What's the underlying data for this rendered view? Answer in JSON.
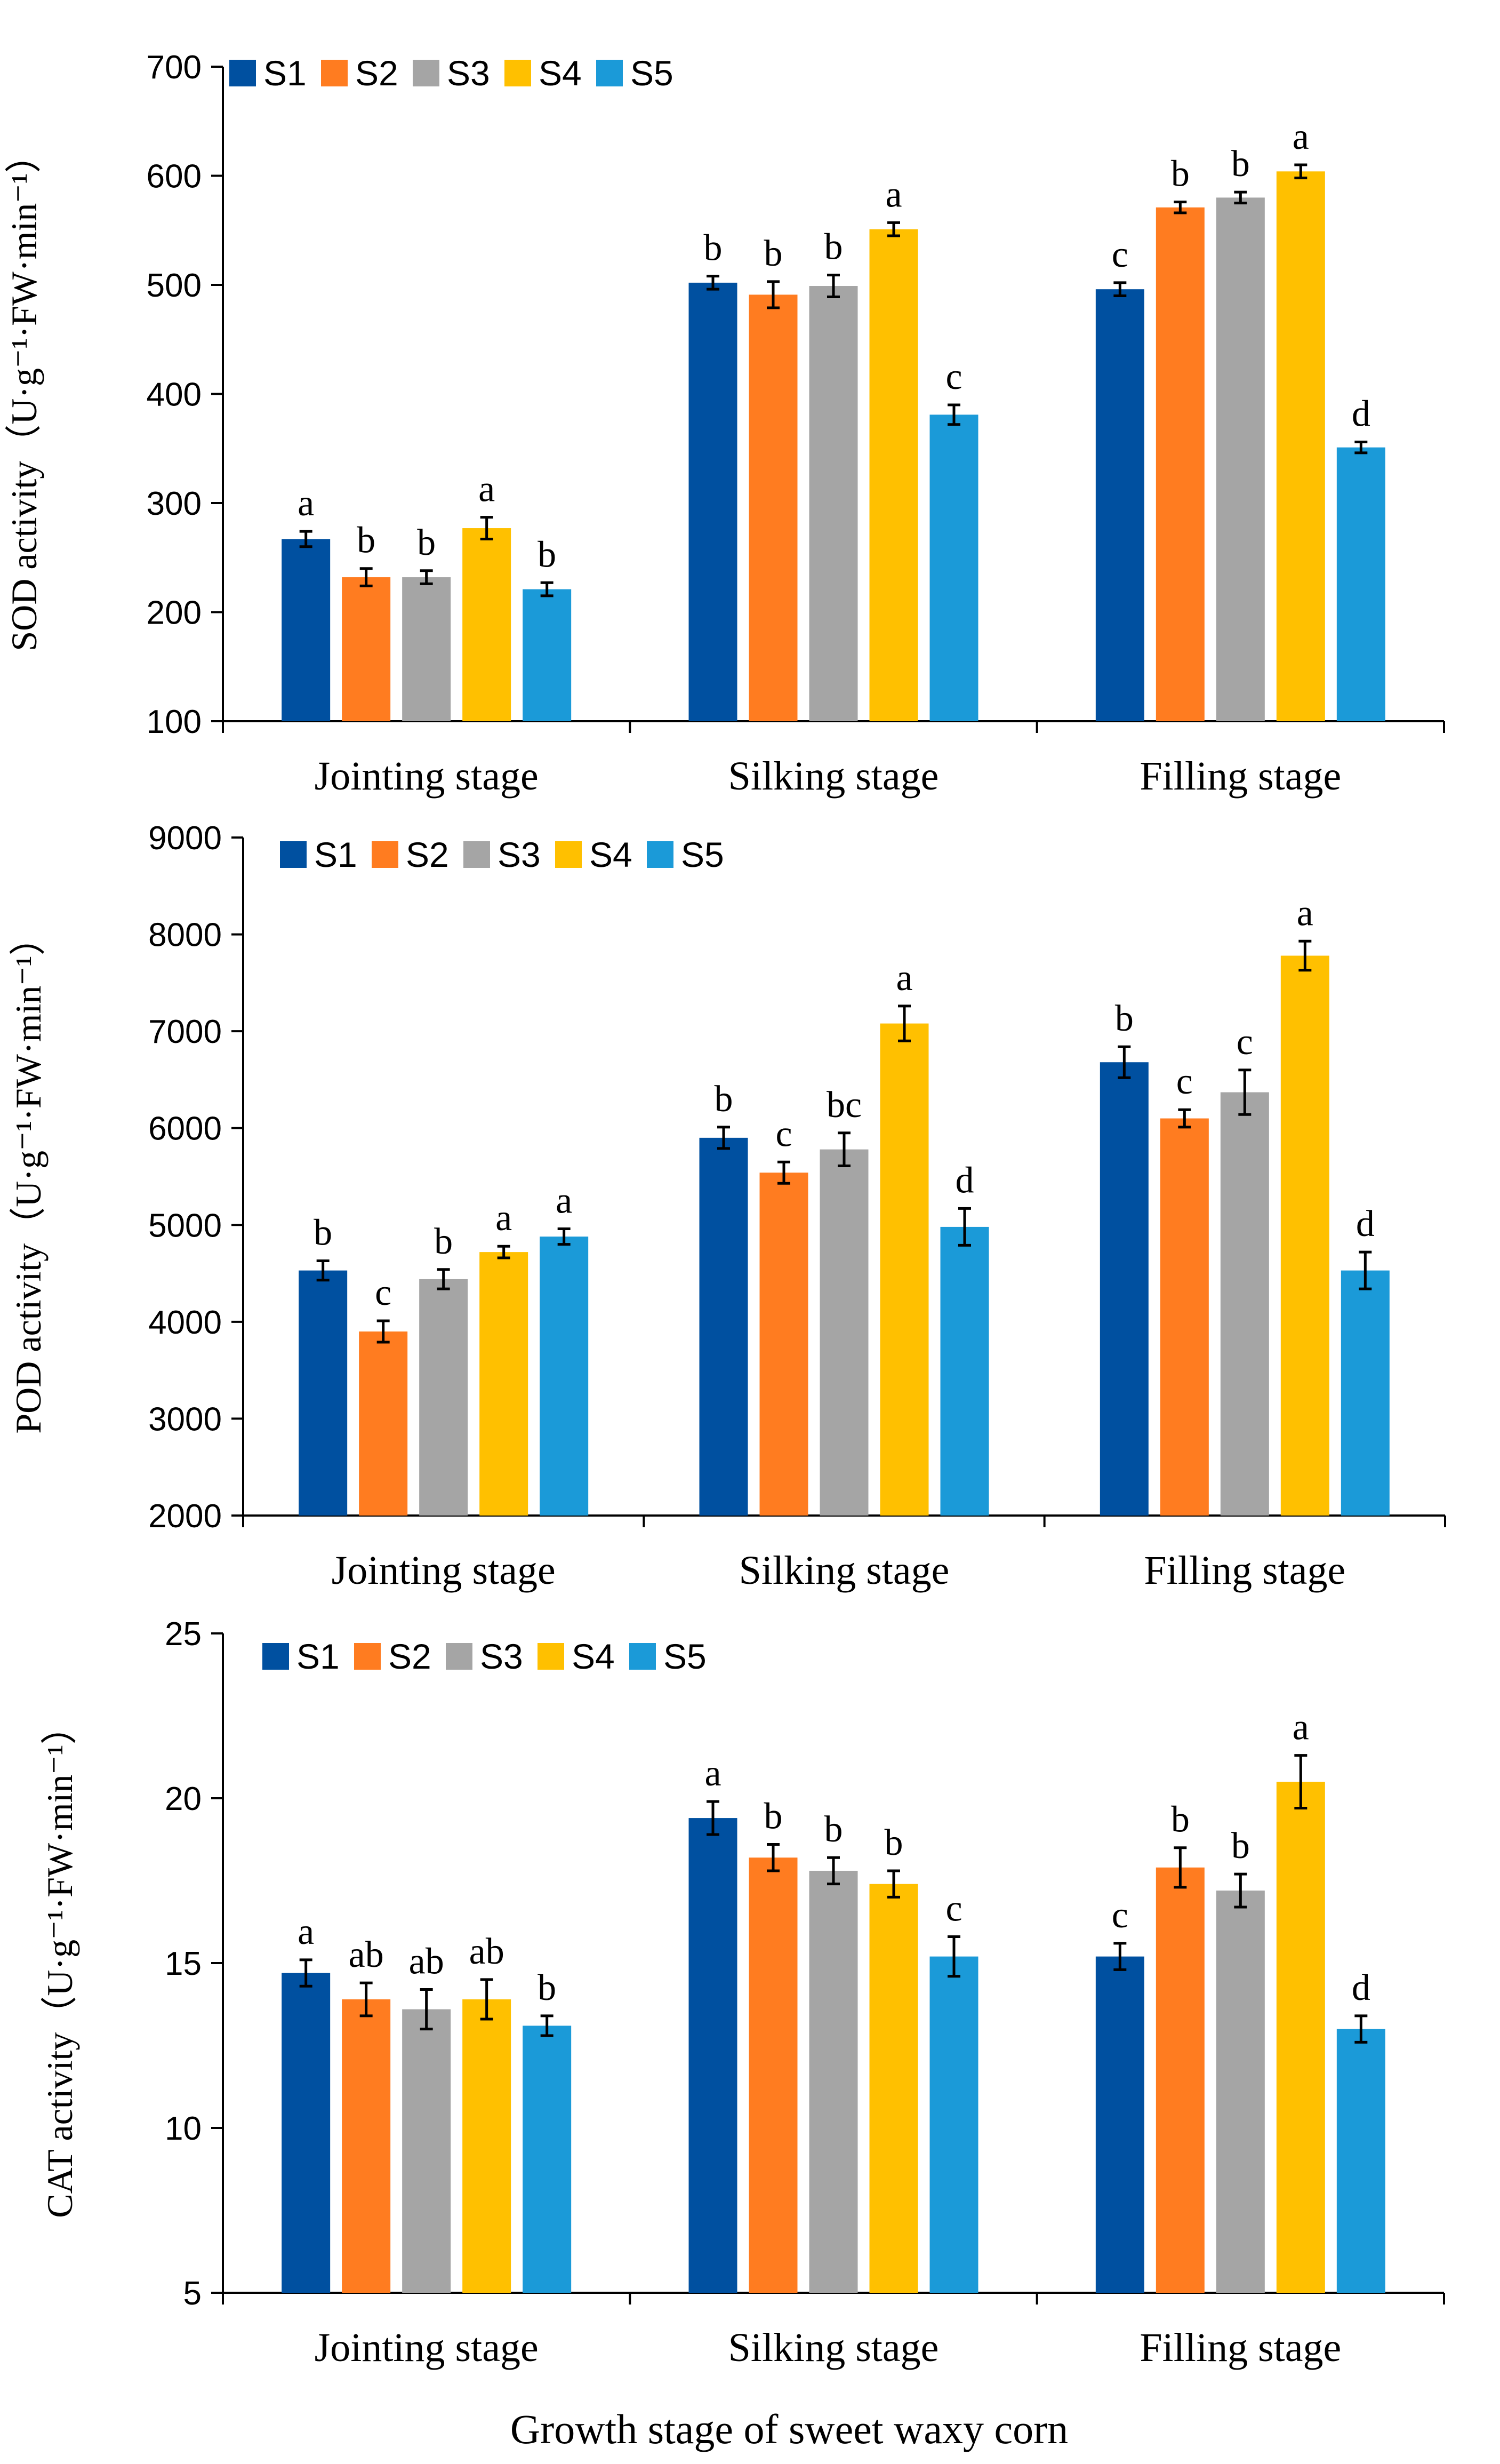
{
  "colors": {
    "S1": "#0050a0",
    "S2": "#ff7c20",
    "S3": "#a5a5a5",
    "S4": "#ffc000",
    "S5": "#1b9ad8"
  },
  "xlabel": "Growth stage of sweet waxy corn",
  "chart_data": [
    {
      "type": "bar",
      "categories": [
        "Jointing stage",
        "Silking stage",
        "Filling stage"
      ],
      "ylabel_prefix": "SOD activity",
      "unit": "（U·g⁻¹·FW·min⁻¹）",
      "ylim": [
        100,
        700
      ],
      "yticks": [
        "100",
        "200",
        "300",
        "400",
        "500",
        "600",
        "700"
      ],
      "series": [
        {
          "name": "S1",
          "values": [
            267,
            502,
            496
          ],
          "errors": [
            7,
            6,
            6
          ],
          "letters": [
            "a",
            "b",
            "c"
          ]
        },
        {
          "name": "S2",
          "values": [
            232,
            491,
            571
          ],
          "errors": [
            8,
            12,
            5
          ],
          "letters": [
            "b",
            "b",
            "b"
          ]
        },
        {
          "name": "S3",
          "values": [
            232,
            499,
            580
          ],
          "errors": [
            6,
            10,
            5
          ],
          "letters": [
            "b",
            "b",
            "b"
          ]
        },
        {
          "name": "S4",
          "values": [
            277,
            551,
            604
          ],
          "errors": [
            10,
            6,
            6
          ],
          "letters": [
            "a",
            "a",
            "a"
          ]
        },
        {
          "name": "S5",
          "values": [
            221,
            381,
            351
          ],
          "errors": [
            6,
            9,
            5
          ],
          "letters": [
            "b",
            "c",
            "d"
          ]
        }
      ]
    },
    {
      "type": "bar",
      "categories": [
        "Jointing stage",
        "Silking stage",
        "Filling stage"
      ],
      "ylabel_prefix": "POD activity",
      "unit": "（U·g⁻¹·FW·min⁻¹）",
      "ylim": [
        2000,
        9000
      ],
      "yticks": [
        "2000",
        "3000",
        "4000",
        "5000",
        "6000",
        "7000",
        "8000",
        "9000"
      ],
      "series": [
        {
          "name": "S1",
          "values": [
            4530,
            5900,
            6680
          ],
          "errors": [
            100,
            110,
            160
          ],
          "letters": [
            "b",
            "b",
            "b"
          ]
        },
        {
          "name": "S2",
          "values": [
            3900,
            5540,
            6100
          ],
          "errors": [
            110,
            110,
            90
          ],
          "letters": [
            "c",
            "c",
            "c"
          ]
        },
        {
          "name": "S3",
          "values": [
            4440,
            5780,
            6370
          ],
          "errors": [
            100,
            170,
            230
          ],
          "letters": [
            "b",
            "bc",
            "c"
          ]
        },
        {
          "name": "S4",
          "values": [
            4720,
            7080,
            7780
          ],
          "errors": [
            60,
            180,
            150
          ],
          "letters": [
            "a",
            "a",
            "a"
          ]
        },
        {
          "name": "S5",
          "values": [
            4880,
            4980,
            4530
          ],
          "errors": [
            80,
            190,
            190
          ],
          "letters": [
            "a",
            "d",
            "d"
          ]
        }
      ]
    },
    {
      "type": "bar",
      "categories": [
        "Jointing stage",
        "Silking stage",
        "Filling stage"
      ],
      "ylabel_prefix": "CAT activity",
      "unit": "（U·g⁻¹·FW·min⁻¹）",
      "ylim": [
        5,
        25
      ],
      "yticks": [
        "5",
        "10",
        "15",
        "20",
        "25"
      ],
      "series": [
        {
          "name": "S1",
          "values": [
            14.7,
            19.4,
            15.2
          ],
          "errors": [
            0.4,
            0.5,
            0.4
          ],
          "letters": [
            "a",
            "a",
            "c"
          ]
        },
        {
          "name": "S2",
          "values": [
            13.9,
            18.2,
            17.9
          ],
          "errors": [
            0.5,
            0.4,
            0.6
          ],
          "letters": [
            "ab",
            "b",
            "b"
          ]
        },
        {
          "name": "S3",
          "values": [
            13.6,
            17.8,
            17.2
          ],
          "errors": [
            0.6,
            0.4,
            0.5
          ],
          "letters": [
            "ab",
            "b",
            "b"
          ]
        },
        {
          "name": "S4",
          "values": [
            13.9,
            17.4,
            20.5
          ],
          "errors": [
            0.6,
            0.4,
            0.8
          ],
          "letters": [
            "ab",
            "b",
            "a"
          ]
        },
        {
          "name": "S5",
          "values": [
            13.1,
            15.2,
            13.0
          ],
          "errors": [
            0.3,
            0.6,
            0.4
          ],
          "letters": [
            "b",
            "c",
            "d"
          ]
        }
      ]
    }
  ]
}
